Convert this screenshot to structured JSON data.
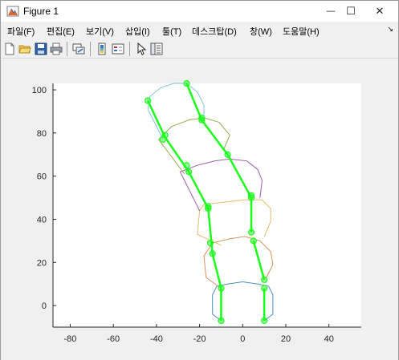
{
  "window": {
    "title": "Figure 1",
    "minimize_glyph": "—",
    "maximize_glyph": "☐",
    "close_glyph": "✕",
    "app_icon": "matlab-figure-icon"
  },
  "menubar": {
    "items": [
      "파일(F)",
      "편집(E)",
      "보기(V)",
      "삽입(I)",
      "툴(T)",
      "데스크탑(D)",
      "창(W)",
      "도움말(H)"
    ],
    "dock_glyph": "↘"
  },
  "toolbar": {
    "icons": [
      "new-figure-icon",
      "open-file-icon",
      "save-icon",
      "print-icon",
      "link-plot-icon",
      "insert-colorbar-icon",
      "insert-legend-icon",
      "edit-plot-arrow-icon",
      "property-inspector-icon"
    ]
  },
  "chart_data": {
    "type": "line",
    "title": "",
    "xlabel": "",
    "ylabel": "",
    "xlim": [
      -88,
      55
    ],
    "ylim": [
      -10,
      103
    ],
    "xticks": [
      -80,
      -60,
      -40,
      -20,
      0,
      20,
      40
    ],
    "yticks": [
      0,
      20,
      40,
      60,
      80,
      100
    ],
    "grid": false,
    "segments": [
      {
        "name": "",
        "color": "#4a8fc0",
        "outline": [
          [
            -10,
            -7
          ],
          [
            -14,
            -4
          ],
          [
            -14,
            5
          ],
          [
            -12,
            9
          ],
          [
            -7,
            10
          ],
          [
            0,
            11
          ],
          [
            7,
            10
          ],
          [
            12,
            9
          ],
          [
            14,
            5
          ],
          [
            14,
            -4
          ],
          [
            10,
            -7
          ]
        ]
      },
      {
        "name": "",
        "color": "#d9925a",
        "outline": [
          [
            -10,
            8
          ],
          [
            -17,
            13
          ],
          [
            -18,
            23
          ],
          [
            -14,
            29
          ],
          [
            -6,
            31
          ],
          [
            1,
            32
          ],
          [
            8,
            30
          ],
          [
            13,
            25
          ],
          [
            14,
            19
          ],
          [
            11,
            13
          ]
        ]
      },
      {
        "name": "",
        "color": "#e2be70",
        "outline": [
          [
            -10,
            28
          ],
          [
            -21,
            33
          ],
          [
            -20,
            44
          ],
          [
            -18,
            47
          ],
          [
            -8,
            48
          ],
          [
            1,
            49
          ],
          [
            9,
            49
          ],
          [
            13,
            45
          ],
          [
            13,
            39
          ],
          [
            10,
            32
          ]
        ]
      },
      {
        "name": "",
        "color": "#9b5fa5",
        "outline": [
          [
            -20,
            44
          ],
          [
            -29,
            62
          ],
          [
            -21,
            65
          ],
          [
            -13,
            67
          ],
          [
            -6,
            68
          ],
          [
            2,
            67
          ],
          [
            7,
            63
          ],
          [
            9,
            58
          ],
          [
            8,
            50
          ]
        ]
      },
      {
        "name": "",
        "color": "#91ad4f",
        "outline": [
          [
            -27,
            61
          ],
          [
            -39,
            77
          ],
          [
            -33,
            83
          ],
          [
            -25,
            86
          ],
          [
            -18,
            87
          ],
          [
            -11,
            85
          ],
          [
            -6,
            79
          ],
          [
            -9,
            72
          ]
        ]
      },
      {
        "name": "",
        "color": "#7fc6d8",
        "outline": [
          [
            -37,
            77
          ],
          [
            -44,
            91
          ],
          [
            -43,
            97
          ],
          [
            -38,
            101
          ],
          [
            -32,
            103
          ],
          [
            -26,
            103
          ],
          [
            -21,
            99
          ],
          [
            -18,
            93
          ],
          [
            -18,
            86
          ]
        ]
      }
    ],
    "skeleton": {
      "color": "#1aff1a",
      "lines": [
        [
          [
            -10,
            -7
          ],
          [
            -10,
            8
          ]
        ],
        [
          [
            10,
            -7
          ],
          [
            10,
            8
          ]
        ],
        [
          [
            -10,
            8
          ],
          [
            -14,
            24
          ]
        ],
        [
          [
            10,
            12
          ],
          [
            5,
            30
          ]
        ],
        [
          [
            -14,
            24
          ],
          [
            -16,
            45
          ]
        ],
        [
          [
            4,
            34
          ],
          [
            4,
            50
          ]
        ],
        [
          [
            -16,
            45
          ],
          [
            -25,
            62
          ]
        ],
        [
          [
            4,
            50
          ],
          [
            -7,
            70
          ]
        ],
        [
          [
            -25,
            62
          ],
          [
            -36,
            78
          ]
        ],
        [
          [
            -7,
            70
          ],
          [
            -19,
            86
          ]
        ],
        [
          [
            -36,
            78
          ],
          [
            -44,
            95
          ]
        ],
        [
          [
            -19,
            86
          ],
          [
            -26,
            103
          ]
        ]
      ],
      "joints": [
        [
          -10,
          -7
        ],
        [
          10,
          -7
        ],
        [
          -10,
          8
        ],
        [
          10,
          8
        ],
        [
          10,
          12
        ],
        [
          -14,
          24
        ],
        [
          -15,
          29
        ],
        [
          5,
          30
        ],
        [
          4,
          34
        ],
        [
          -16,
          45
        ],
        [
          -16,
          46
        ],
        [
          4,
          50
        ],
        [
          4,
          51
        ],
        [
          -25,
          62
        ],
        [
          -26,
          65
        ],
        [
          -7,
          70
        ],
        [
          -37,
          77
        ],
        [
          -36,
          79
        ],
        [
          -19,
          86
        ],
        [
          -19,
          87
        ],
        [
          -44,
          95
        ],
        [
          -26,
          103
        ]
      ]
    }
  }
}
